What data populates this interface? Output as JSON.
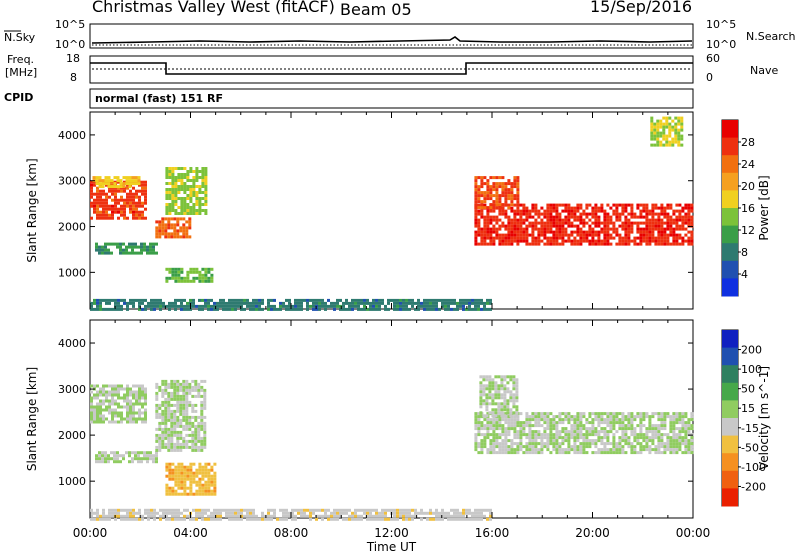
{
  "header": {
    "station": "Christmas Valley West (fitACF)",
    "beam": "Beam 05",
    "date": "15/Sep/2016"
  },
  "status_panel": {
    "nsky_label": "N.Sky",
    "nsearch_label": "N.Search",
    "noise_ticks": [
      "10^5",
      "10^0"
    ],
    "freq_label_1": "Freq.",
    "freq_label_2": "[MHz]",
    "freq_ticks": [
      "18",
      "8"
    ],
    "nave_label": "Nave",
    "nave_ticks": [
      "60",
      "0"
    ],
    "cpid_label": "CPID",
    "cpid_text": "normal (fast) 151 RF"
  },
  "colors": {
    "power_scale": [
      "#1030e0",
      "#2050b0",
      "#2e7a70",
      "#3a9e48",
      "#7cc23a",
      "#f0d020",
      "#f5a020",
      "#f27010",
      "#ee3010",
      "#e80000"
    ],
    "velocity_scale": [
      "#1020c0",
      "#2050b0",
      "#2f8060",
      "#46a84a",
      "#90cc60",
      "#c8c8c8",
      "#f0c040",
      "#f59020",
      "#f06010",
      "#ea2000"
    ]
  },
  "chart_data": [
    {
      "type": "heatmap",
      "title": "Power",
      "ylabel": "Slant Range [km]",
      "yticks": [
        "1000",
        "2000",
        "3000",
        "4000"
      ],
      "ylim": [
        200,
        4500
      ],
      "xlim": [
        0,
        24
      ],
      "colorbar": {
        "label": "Power [dB]",
        "ticks": [
          "4",
          "8",
          "12",
          "16",
          "20",
          "24",
          "28"
        ],
        "range": [
          0,
          32
        ]
      },
      "regions": [
        {
          "t0": 0.0,
          "t1": 2.2,
          "r0": 2200,
          "r1": 3000,
          "value": 27
        },
        {
          "t0": 0.1,
          "t1": 2.0,
          "r0": 2900,
          "r1": 3100,
          "value": 18
        },
        {
          "t0": 0.2,
          "t1": 2.6,
          "r0": 1400,
          "r1": 1650,
          "value": 10
        },
        {
          "t0": 2.6,
          "t1": 4.0,
          "r0": 1750,
          "r1": 2200,
          "value": 25
        },
        {
          "t0": 3.0,
          "t1": 4.8,
          "r0": 800,
          "r1": 1100,
          "value": 13
        },
        {
          "t0": 3.0,
          "t1": 4.6,
          "r0": 2300,
          "r1": 3300,
          "value": 15
        },
        {
          "t0": 15.3,
          "t1": 24.0,
          "r0": 1600,
          "r1": 2500,
          "value": 28
        },
        {
          "t0": 15.3,
          "t1": 17.0,
          "r0": 2400,
          "r1": 3100,
          "value": 26
        },
        {
          "t0": 0.0,
          "t1": 16.0,
          "r0": 200,
          "r1": 420,
          "value": 8
        },
        {
          "t0": 22.3,
          "t1": 23.5,
          "r0": 3800,
          "r1": 4400,
          "value": 16
        }
      ]
    },
    {
      "type": "heatmap",
      "title": "Velocity",
      "ylabel": "Slant Range [km]",
      "xlabel": "Time UT",
      "xticks": [
        "00:00",
        "04:00",
        "08:00",
        "12:00",
        "16:00",
        "20:00",
        "00:00"
      ],
      "yticks": [
        "1000",
        "2000",
        "3000",
        "4000"
      ],
      "ylim": [
        200,
        4500
      ],
      "xlim": [
        0,
        24
      ],
      "colorbar": {
        "label": "Velocity [m s^-1]",
        "ticks": [
          "200",
          "100",
          "50",
          "15",
          "-15",
          "-50",
          "-100",
          "-200"
        ],
        "range": [
          -250,
          250
        ]
      },
      "regions": [
        {
          "t0": 0.0,
          "t1": 2.2,
          "r0": 2300,
          "r1": 3100,
          "value": 0
        },
        {
          "t0": 0.2,
          "t1": 2.6,
          "r0": 1400,
          "r1": 1650,
          "value": 0
        },
        {
          "t0": 2.6,
          "t1": 4.6,
          "r0": 1700,
          "r1": 3200,
          "value": 0
        },
        {
          "t0": 3.0,
          "t1": 5.0,
          "r0": 700,
          "r1": 1400,
          "value": -80
        },
        {
          "t0": 15.3,
          "t1": 24.0,
          "r0": 1600,
          "r1": 2500,
          "value": 0
        },
        {
          "t0": 15.5,
          "t1": 17.0,
          "r0": 2400,
          "r1": 3300,
          "value": 0
        },
        {
          "t0": 0.0,
          "t1": 16.0,
          "r0": 200,
          "r1": 400,
          "value": -30
        }
      ]
    }
  ]
}
